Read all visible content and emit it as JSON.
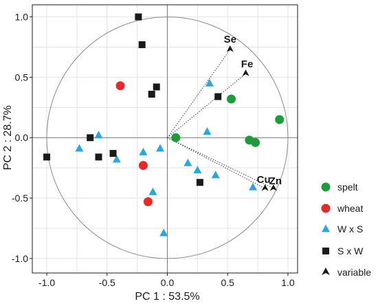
{
  "chart_data": {
    "type": "scatter",
    "xlabel": "PC 1 : 53.5%",
    "ylabel": "PC 2 : 28.7%",
    "xlim": [
      -1.12,
      1.08
    ],
    "ylim": [
      -1.12,
      1.1
    ],
    "x_ticks": [
      "-1.0",
      "-0.5",
      "0.0",
      "0.5",
      "1.0"
    ],
    "y_ticks": [
      "1.0",
      "0.5",
      "0.0",
      "-0.5",
      "-1.0"
    ],
    "grid": true,
    "unit_circle": true,
    "legend_position": "right",
    "series": [
      {
        "name": "spelt",
        "marker": "circle",
        "color": "#1e9b3c",
        "points": [
          [
            0.07,
            0.0
          ],
          [
            0.53,
            0.32
          ],
          [
            0.68,
            -0.02
          ],
          [
            0.73,
            -0.04
          ],
          [
            0.93,
            0.15
          ]
        ]
      },
      {
        "name": "wheat",
        "marker": "circle",
        "color": "#e8282a",
        "points": [
          [
            -0.39,
            0.43
          ],
          [
            -0.2,
            -0.23
          ],
          [
            -0.16,
            -0.53
          ]
        ]
      },
      {
        "name": "W x S",
        "marker": "triangle",
        "color": "#29a8e0",
        "points": [
          [
            -0.57,
            0.02
          ],
          [
            -0.73,
            -0.09
          ],
          [
            -0.42,
            -0.18
          ],
          [
            -0.2,
            -0.12
          ],
          [
            -0.06,
            -0.09
          ],
          [
            -0.12,
            -0.45
          ],
          [
            -0.03,
            -0.79
          ],
          [
            0.17,
            -0.21
          ],
          [
            0.25,
            -0.27
          ],
          [
            0.33,
            0.05
          ],
          [
            0.4,
            -0.31
          ],
          [
            0.35,
            0.45
          ],
          [
            0.71,
            -0.41
          ]
        ]
      },
      {
        "name": "S x W",
        "marker": "square",
        "color": "#1a1a1a",
        "points": [
          [
            -0.24,
            1.0
          ],
          [
            -0.21,
            0.77
          ],
          [
            -0.09,
            0.42
          ],
          [
            -0.13,
            0.36
          ],
          [
            -0.64,
            0.0
          ],
          [
            -0.45,
            -0.13
          ],
          [
            -0.57,
            -0.16
          ],
          [
            -1.0,
            -0.16
          ],
          [
            0.27,
            -0.37
          ],
          [
            0.42,
            0.34
          ]
        ]
      }
    ],
    "variables": [
      {
        "name": "Se",
        "x": 0.52,
        "y": 0.73
      },
      {
        "name": "Fe",
        "x": 0.65,
        "y": 0.53
      },
      {
        "name": "Cu",
        "x": 0.81,
        "y": -0.42
      },
      {
        "name": "Zn",
        "x": 0.88,
        "y": -0.42
      }
    ],
    "legend": [
      {
        "label": "spelt",
        "marker": "circle",
        "color": "#1e9b3c"
      },
      {
        "label": "wheat",
        "marker": "circle",
        "color": "#e8282a"
      },
      {
        "label": "W x S",
        "marker": "triangle",
        "color": "#29a8e0"
      },
      {
        "label": "S x W",
        "marker": "square",
        "color": "#1a1a1a"
      },
      {
        "label": "variable",
        "marker": "arrow",
        "color": "#1a1a1a"
      }
    ]
  }
}
